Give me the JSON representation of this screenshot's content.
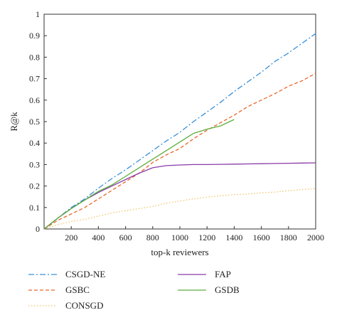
{
  "chart_data": {
    "type": "line",
    "title": "",
    "xlabel": "top-k reviewers",
    "ylabel": "R@k",
    "xlim": [
      0,
      2000
    ],
    "ylim": [
      0,
      1
    ],
    "xticks": [
      200,
      400,
      600,
      800,
      1000,
      1200,
      1400,
      1600,
      1800,
      2000
    ],
    "yticks": [
      0,
      0.1,
      0.2,
      0.3,
      0.4,
      0.5,
      0.6,
      0.7,
      0.8,
      0.9,
      1
    ],
    "grid": false,
    "legend_position": "below plot, two columns",
    "series": [
      {
        "name": "CSGD-NE",
        "color": "#3a8fd9",
        "dash": "dash-dot",
        "x": [
          0,
          100,
          200,
          300,
          400,
          500,
          600,
          700,
          800,
          900,
          1000,
          1100,
          1200,
          1300,
          1400,
          1500,
          1600,
          1700,
          1800,
          1900,
          2000
        ],
        "y": [
          0,
          0.05,
          0.1,
          0.14,
          0.19,
          0.235,
          0.275,
          0.32,
          0.365,
          0.41,
          0.45,
          0.5,
          0.545,
          0.59,
          0.64,
          0.685,
          0.73,
          0.78,
          0.82,
          0.865,
          0.91
        ]
      },
      {
        "name": "GSBC",
        "color": "#e8682a",
        "dash": "dashed",
        "x": [
          0,
          100,
          200,
          300,
          400,
          500,
          600,
          700,
          800,
          900,
          1000,
          1100,
          1200,
          1300,
          1400,
          1500,
          1600,
          1700,
          1800,
          1900,
          2000
        ],
        "y": [
          0,
          0.04,
          0.07,
          0.1,
          0.14,
          0.18,
          0.22,
          0.26,
          0.31,
          0.345,
          0.375,
          0.42,
          0.46,
          0.495,
          0.53,
          0.57,
          0.6,
          0.63,
          0.665,
          0.69,
          0.725
        ]
      },
      {
        "name": "CONSGD",
        "color": "#f2c46a",
        "dash": "dotted",
        "x": [
          0,
          100,
          200,
          300,
          400,
          500,
          600,
          700,
          800,
          900,
          1000,
          1100,
          1200,
          1300,
          1400,
          1500,
          1600,
          1700,
          1800,
          1900,
          2000
        ],
        "y": [
          0,
          0.02,
          0.035,
          0.045,
          0.06,
          0.075,
          0.085,
          0.095,
          0.105,
          0.12,
          0.13,
          0.14,
          0.148,
          0.155,
          0.16,
          0.163,
          0.168,
          0.172,
          0.178,
          0.183,
          0.188
        ]
      },
      {
        "name": "FAP",
        "color": "#8a3aa8",
        "dash": "solid",
        "x": [
          0,
          100,
          200,
          300,
          400,
          500,
          600,
          700,
          800,
          900,
          1000,
          1100,
          1200,
          1300,
          1400,
          1500,
          1600,
          1700,
          1800,
          1900,
          2000
        ],
        "y": [
          0,
          0.05,
          0.095,
          0.135,
          0.17,
          0.2,
          0.23,
          0.26,
          0.285,
          0.295,
          0.298,
          0.3,
          0.3,
          0.301,
          0.302,
          0.303,
          0.304,
          0.305,
          0.306,
          0.307,
          0.308
        ]
      },
      {
        "name": "GSDB",
        "color": "#5cae3c",
        "dash": "solid",
        "x": [
          0,
          100,
          200,
          300,
          400,
          500,
          600,
          700,
          800,
          900,
          1000,
          1100,
          1200,
          1300,
          1400
        ],
        "y": [
          0,
          0.05,
          0.095,
          0.135,
          0.175,
          0.205,
          0.245,
          0.285,
          0.325,
          0.365,
          0.405,
          0.445,
          0.465,
          0.48,
          0.51
        ]
      }
    ]
  }
}
